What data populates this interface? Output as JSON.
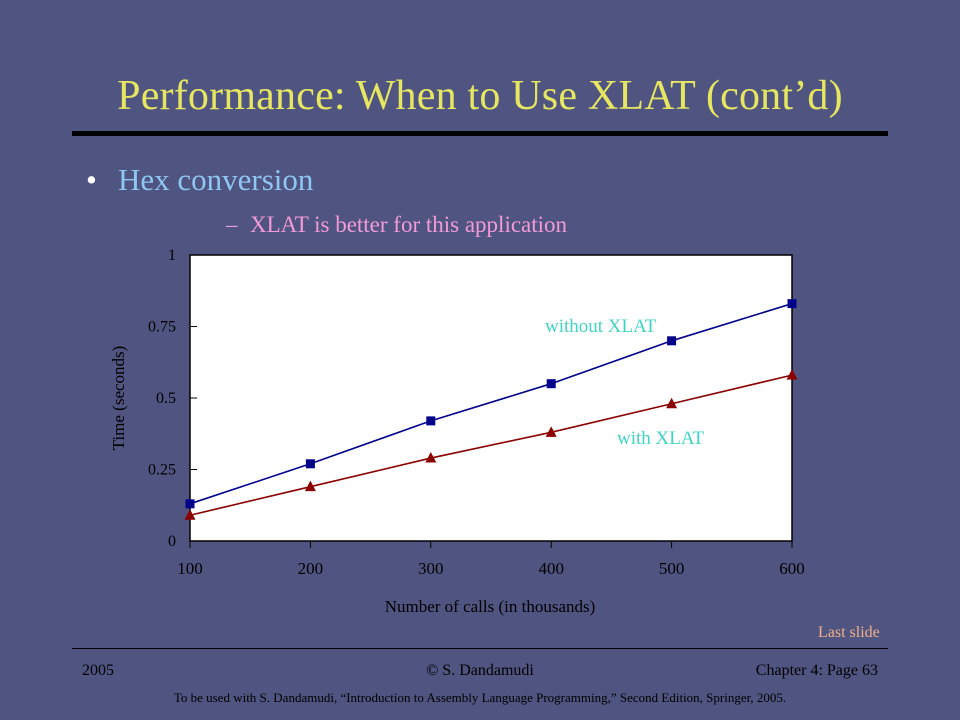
{
  "slide": {
    "title": "Performance: When to Use XLAT (cont’d)",
    "bullet_symbol": "•",
    "bullet": "Hex conversion",
    "sub_dash": "–",
    "sub_bullet": "XLAT is better for this application",
    "last_slide_link": "Last slide"
  },
  "footer": {
    "year": "2005",
    "author": "© S. Dandamudi",
    "page": "Chapter 4: Page 63",
    "note": "To be used with S. Dandamudi, “Introduction to Assembly Language Programming,” Second Edition, Springer, 2005."
  },
  "colors": {
    "background": "#4f5480",
    "title": "#e6e661",
    "bullet": "#8fc6f2",
    "sub_bullet": "#f39ad8",
    "plot_area": "#ffffff",
    "series_without_xlat": "#00008b",
    "series_with_xlat": "#8b0000",
    "annotation": "#3fd4c4",
    "last_slide": "#f0b08a"
  },
  "chart_data": {
    "type": "line",
    "xlabel": "Number of calls (in thousands)",
    "ylabel": "Time (seconds)",
    "x": [
      100,
      200,
      300,
      400,
      500,
      600
    ],
    "xticks": [
      "100",
      "200",
      "300",
      "400",
      "500",
      "600"
    ],
    "xlim": [
      100,
      600
    ],
    "ylim": [
      0,
      1
    ],
    "yticks": [
      0,
      0.25,
      0.5,
      0.75,
      1
    ],
    "ytick_labels": [
      "0",
      "0.25",
      "0.5",
      "0.75",
      "1"
    ],
    "grid": false,
    "series": [
      {
        "name": "without XLAT",
        "marker": "square",
        "color": "#00008b",
        "values": [
          0.13,
          0.27,
          0.42,
          0.55,
          0.7,
          0.83
        ]
      },
      {
        "name": "with XLAT",
        "marker": "triangle",
        "color": "#8b0000",
        "values": [
          0.09,
          0.19,
          0.29,
          0.38,
          0.48,
          0.58
        ]
      }
    ]
  }
}
